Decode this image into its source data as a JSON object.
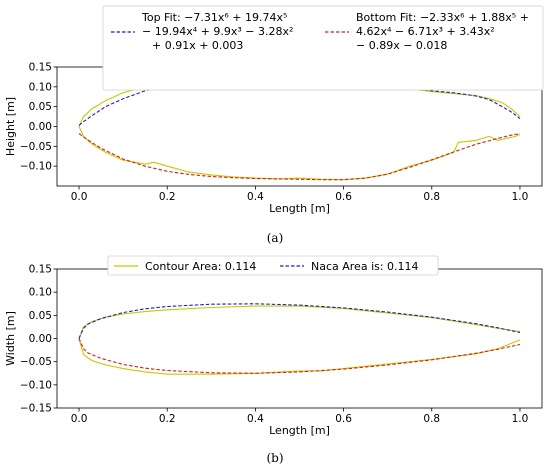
{
  "chart_data": [
    {
      "type": "line",
      "caption": "(a)",
      "xlabel": "Length [m]",
      "ylabel": "Height [m]",
      "xlim": [
        -0.05,
        1.05
      ],
      "ylim": [
        -0.15,
        0.15
      ],
      "xticks": [
        "0.0",
        "0.2",
        "0.4",
        "0.6",
        "0.8",
        "1.0"
      ],
      "yticks": [
        "-0.10",
        "-0.05",
        "0.00",
        "0.05",
        "0.10",
        "0.15"
      ],
      "grid": false,
      "legend_position": "top",
      "legend": [
        {
          "name": "Top Fit: −7.31x⁶ + 19.74x⁵ − 19.94x⁴ + 9.9x³ − 3.28x² + 0.91x + 0.003",
          "lines": [
            "Top Fit: −7.31x⁶ + 19.74x⁵",
            "− 19.94x⁴ + 9.9x³ − 3.28x²",
            "+ 0.91x + 0.003"
          ],
          "color": "#1f1fbf",
          "style": "dashed"
        },
        {
          "name": "Bottom Fit: −2.33x⁶ + 1.88x⁵ + 4.62x⁴ − 6.71x³ + 3.43x² − 0.89x − 0.018",
          "lines": [
            "Bottom Fit: −2.33x⁶ + 1.88x⁵ +",
            "4.62x⁴ − 6.71x³ + 3.43x²",
            "− 0.89x − 0.018"
          ],
          "color": "#d62020",
          "style": "dashed"
        }
      ],
      "series": [
        {
          "color": "#c8c800",
          "style": "solid",
          "x": [
            0.0,
            0.01,
            0.03,
            0.06,
            0.1,
            0.15,
            0.2,
            0.25,
            0.3,
            0.35,
            0.4,
            0.45,
            0.5,
            0.55,
            0.6,
            0.65,
            0.7,
            0.75,
            0.8,
            0.85,
            0.9,
            0.93,
            0.96,
            0.98,
            1.0
          ],
          "y": [
            0.0,
            0.025,
            0.045,
            0.065,
            0.085,
            0.1,
            0.113,
            0.123,
            0.13,
            0.134,
            0.136,
            0.136,
            0.133,
            0.128,
            0.121,
            0.112,
            0.103,
            0.095,
            0.088,
            0.083,
            0.078,
            0.07,
            0.06,
            0.045,
            0.025
          ]
        },
        {
          "color": "#c8c800",
          "style": "solid",
          "x": [
            0.0,
            0.01,
            0.03,
            0.06,
            0.1,
            0.15,
            0.17,
            0.2,
            0.25,
            0.3,
            0.35,
            0.4,
            0.45,
            0.5,
            0.55,
            0.6,
            0.65,
            0.7,
            0.75,
            0.8,
            0.85,
            0.86,
            0.9,
            0.93,
            0.95,
            0.97,
            0.99,
            1.0
          ],
          "y": [
            0.0,
            -0.025,
            -0.045,
            -0.065,
            -0.085,
            -0.095,
            -0.09,
            -0.1,
            -0.115,
            -0.122,
            -0.127,
            -0.13,
            -0.132,
            -0.13,
            -0.133,
            -0.134,
            -0.13,
            -0.12,
            -0.1,
            -0.085,
            -0.065,
            -0.04,
            -0.035,
            -0.025,
            -0.035,
            -0.03,
            -0.025,
            -0.02
          ]
        },
        {
          "color": "#1f1fbf",
          "style": "dashed",
          "x": [
            0.0,
            0.01,
            0.03,
            0.06,
            0.1,
            0.15,
            0.2,
            0.25,
            0.3,
            0.35,
            0.4,
            0.45,
            0.5,
            0.55,
            0.6,
            0.65,
            0.7,
            0.75,
            0.8,
            0.85,
            0.9,
            0.93,
            0.96,
            0.98,
            1.0
          ],
          "y": [
            0.003,
            0.012,
            0.028,
            0.05,
            0.07,
            0.09,
            0.106,
            0.119,
            0.128,
            0.134,
            0.137,
            0.137,
            0.134,
            0.128,
            0.121,
            0.113,
            0.104,
            0.096,
            0.09,
            0.085,
            0.077,
            0.068,
            0.05,
            0.037,
            0.02
          ]
        },
        {
          "color": "#d62020",
          "style": "dashed",
          "x": [
            0.0,
            0.02,
            0.05,
            0.1,
            0.15,
            0.2,
            0.25,
            0.3,
            0.35,
            0.4,
            0.45,
            0.5,
            0.55,
            0.6,
            0.65,
            0.7,
            0.75,
            0.8,
            0.85,
            0.9,
            0.95,
            0.98,
            1.0
          ],
          "y": [
            -0.018,
            -0.034,
            -0.055,
            -0.082,
            -0.1,
            -0.113,
            -0.121,
            -0.126,
            -0.129,
            -0.131,
            -0.132,
            -0.133,
            -0.134,
            -0.134,
            -0.13,
            -0.12,
            -0.103,
            -0.084,
            -0.064,
            -0.045,
            -0.03,
            -0.022,
            -0.018
          ]
        }
      ]
    },
    {
      "type": "line",
      "caption": "(b)",
      "xlabel": "Length [m]",
      "ylabel": "Width [m]",
      "xlim": [
        -0.05,
        1.05
      ],
      "ylim": [
        -0.15,
        0.15
      ],
      "xticks": [
        "0.0",
        "0.2",
        "0.4",
        "0.6",
        "0.8",
        "1.0"
      ],
      "yticks": [
        "-0.15",
        "-0.10",
        "-0.05",
        "0.00",
        "0.05",
        "0.10",
        "0.15"
      ],
      "grid": false,
      "legend_position": "top",
      "legend": [
        {
          "name": "Contour Area: 0.114",
          "color": "#c8c800",
          "style": "solid"
        },
        {
          "name": "Naca Area is: 0.114",
          "color": "#1f1fbf",
          "style": "dashed"
        }
      ],
      "series": [
        {
          "color": "#c8c800",
          "style": "solid",
          "x": [
            0.0,
            0.01,
            0.03,
            0.06,
            0.1,
            0.15,
            0.2,
            0.3,
            0.4,
            0.5,
            0.6,
            0.7,
            0.8,
            0.9,
            0.95,
            1.0
          ],
          "y": [
            0.0,
            0.025,
            0.037,
            0.046,
            0.053,
            0.058,
            0.062,
            0.067,
            0.07,
            0.07,
            0.065,
            0.055,
            0.045,
            0.03,
            0.022,
            0.015
          ]
        },
        {
          "color": "#c8c800",
          "style": "solid",
          "x": [
            0.0,
            0.01,
            0.03,
            0.06,
            0.1,
            0.15,
            0.2,
            0.3,
            0.4,
            0.5,
            0.55,
            0.6,
            0.7,
            0.8,
            0.9,
            0.95,
            1.0
          ],
          "y": [
            0.0,
            -0.035,
            -0.048,
            -0.057,
            -0.065,
            -0.072,
            -0.077,
            -0.077,
            -0.075,
            -0.07,
            -0.07,
            -0.065,
            -0.055,
            -0.045,
            -0.033,
            -0.022,
            -0.003
          ]
        },
        {
          "color": "#1f1fbf",
          "style": "dashed",
          "x": [
            0.0,
            0.01,
            0.02,
            0.05,
            0.1,
            0.15,
            0.2,
            0.3,
            0.4,
            0.5,
            0.6,
            0.7,
            0.8,
            0.9,
            0.95,
            1.0
          ],
          "y": [
            0.0,
            0.022,
            0.031,
            0.043,
            0.056,
            0.064,
            0.069,
            0.074,
            0.075,
            0.072,
            0.066,
            0.057,
            0.046,
            0.032,
            0.023,
            0.013
          ]
        },
        {
          "color": "#d62020",
          "style": "dashed",
          "x": [
            0.0,
            0.01,
            0.02,
            0.05,
            0.1,
            0.15,
            0.2,
            0.3,
            0.4,
            0.5,
            0.6,
            0.7,
            0.8,
            0.9,
            0.95,
            1.0
          ],
          "y": [
            0.0,
            -0.022,
            -0.031,
            -0.043,
            -0.056,
            -0.064,
            -0.069,
            -0.074,
            -0.075,
            -0.072,
            -0.066,
            -0.057,
            -0.046,
            -0.032,
            -0.023,
            -0.013
          ]
        }
      ]
    }
  ]
}
